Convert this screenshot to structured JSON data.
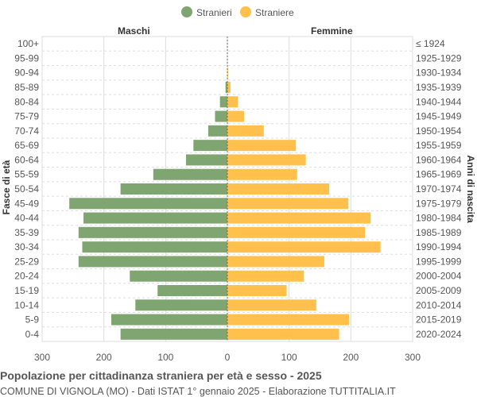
{
  "chart_data": {
    "type": "bar",
    "orientation": "horizontal-pyramid",
    "title": "Popolazione per cittadinanza straniera per età e sesso - 2025",
    "subtitle": "COMUNE DI VIGNOLA (MO) - Dati ISTAT 1° gennaio 2025 - Elaborazione TUTTITALIA.IT",
    "left_header": "Maschi",
    "right_header": "Femmine",
    "ylabel": "Fasce di età",
    "ylabel_right": "Anni di nascita",
    "xlim": [
      -300,
      300
    ],
    "xticks": [
      "300",
      "200",
      "100",
      "0",
      "100",
      "200",
      "300"
    ],
    "grid": true,
    "legend_position": "top",
    "categories": [
      "100+",
      "95-99",
      "90-94",
      "85-89",
      "80-84",
      "75-79",
      "70-74",
      "65-69",
      "60-64",
      "55-59",
      "50-54",
      "45-49",
      "40-44",
      "35-39",
      "30-34",
      "25-29",
      "20-24",
      "15-19",
      "10-14",
      "5-9",
      "0-4"
    ],
    "birth_years": [
      "≤ 1924",
      "1925-1929",
      "1930-1934",
      "1935-1939",
      "1940-1944",
      "1945-1949",
      "1950-1954",
      "1955-1959",
      "1960-1964",
      "1965-1969",
      "1970-1974",
      "1975-1979",
      "1980-1984",
      "1985-1989",
      "1990-1994",
      "1995-1999",
      "2000-2004",
      "2005-2009",
      "2010-2014",
      "2015-2019",
      "2020-2024"
    ],
    "series": [
      {
        "name": "Stranieri",
        "color": "#7fa571",
        "values": [
          0,
          0,
          0,
          3,
          12,
          20,
          31,
          55,
          67,
          120,
          173,
          256,
          233,
          241,
          235,
          241,
          158,
          113,
          149,
          188,
          173
        ]
      },
      {
        "name": "Straniere",
        "color": "#ffc04c",
        "values": [
          0,
          0,
          1,
          5,
          17,
          27,
          59,
          111,
          127,
          113,
          165,
          196,
          232,
          223,
          248,
          157,
          124,
          96,
          144,
          197,
          181
        ]
      }
    ]
  }
}
